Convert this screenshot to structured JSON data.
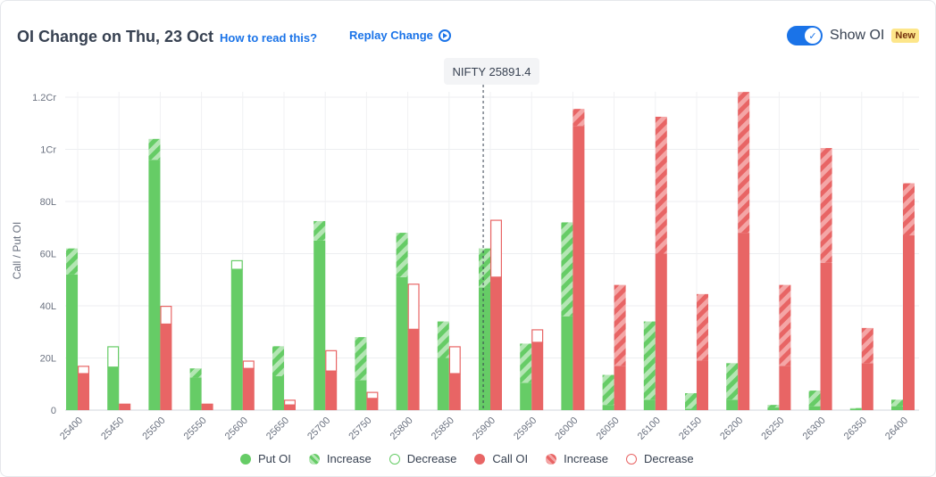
{
  "header": {
    "title": "OI Change on Thu, 23 Oct",
    "how_to": "How to read this?",
    "replay": "Replay Change",
    "show_oi": "Show OI",
    "badge": "New"
  },
  "spot": {
    "label": "NIFTY 25891.4",
    "value": 25891.4
  },
  "colors": {
    "put": "#66cc66",
    "call": "#e86565",
    "put_light": "#b4e6b4",
    "call_light": "#f4a6a6",
    "accent": "#1a73e8"
  },
  "chart_data": {
    "type": "bar",
    "ylabel": "Call / Put OI",
    "ylim": [
      0,
      120
    ],
    "y_ticks": [
      0,
      20,
      40,
      60,
      80,
      100,
      120
    ],
    "y_tick_labels": [
      "0",
      "20L",
      "40L",
      "60L",
      "80L",
      "1Cr",
      "1.2Cr"
    ],
    "categories": [
      "25400",
      "25450",
      "25500",
      "25550",
      "25600",
      "25650",
      "25700",
      "25750",
      "25800",
      "25850",
      "25900",
      "25950",
      "26000",
      "26050",
      "26100",
      "26150",
      "26200",
      "26250",
      "26300",
      "26350",
      "26400"
    ],
    "series": [
      {
        "name": "Put OI",
        "base": [
          52,
          16.5,
          96,
          12.5,
          54,
          13,
          65,
          11.5,
          51,
          20,
          47,
          10.5,
          36,
          2,
          4,
          0.5,
          4,
          1,
          1.5,
          0.5,
          1.5
        ],
        "increase": [
          10,
          0,
          8,
          3.5,
          0,
          11.5,
          7.5,
          16.5,
          17,
          14,
          15,
          15,
          36,
          11.5,
          30,
          6,
          14,
          1,
          6,
          0.3,
          2.5
        ],
        "decrease": [
          0,
          8,
          0,
          0,
          3.5,
          0,
          0,
          0,
          0,
          0,
          0,
          0,
          0,
          0,
          0,
          0,
          0,
          0,
          0,
          0,
          0
        ]
      },
      {
        "name": "Call OI",
        "base": [
          14,
          2.5,
          33,
          2.5,
          16,
          2,
          15,
          4.5,
          31,
          14,
          51,
          26,
          109,
          17,
          60,
          19,
          68,
          17,
          56.5,
          18,
          67
        ],
        "increase": [
          0,
          0,
          0,
          0,
          0,
          0,
          0,
          0,
          0,
          0,
          0,
          0,
          6.5,
          31,
          52.5,
          25.5,
          54,
          31,
          44,
          13.5,
          20
        ],
        "decrease": [
          3,
          0,
          7,
          0,
          3,
          2,
          8,
          2.5,
          17.5,
          10.5,
          22,
          5,
          0,
          0,
          0,
          0,
          0,
          0,
          0,
          0,
          0
        ]
      }
    ],
    "legend": [
      "Put OI",
      "Increase",
      "Decrease",
      "Call OI",
      "Increase",
      "Decrease"
    ],
    "legend_position": "bottom",
    "grid": true
  }
}
